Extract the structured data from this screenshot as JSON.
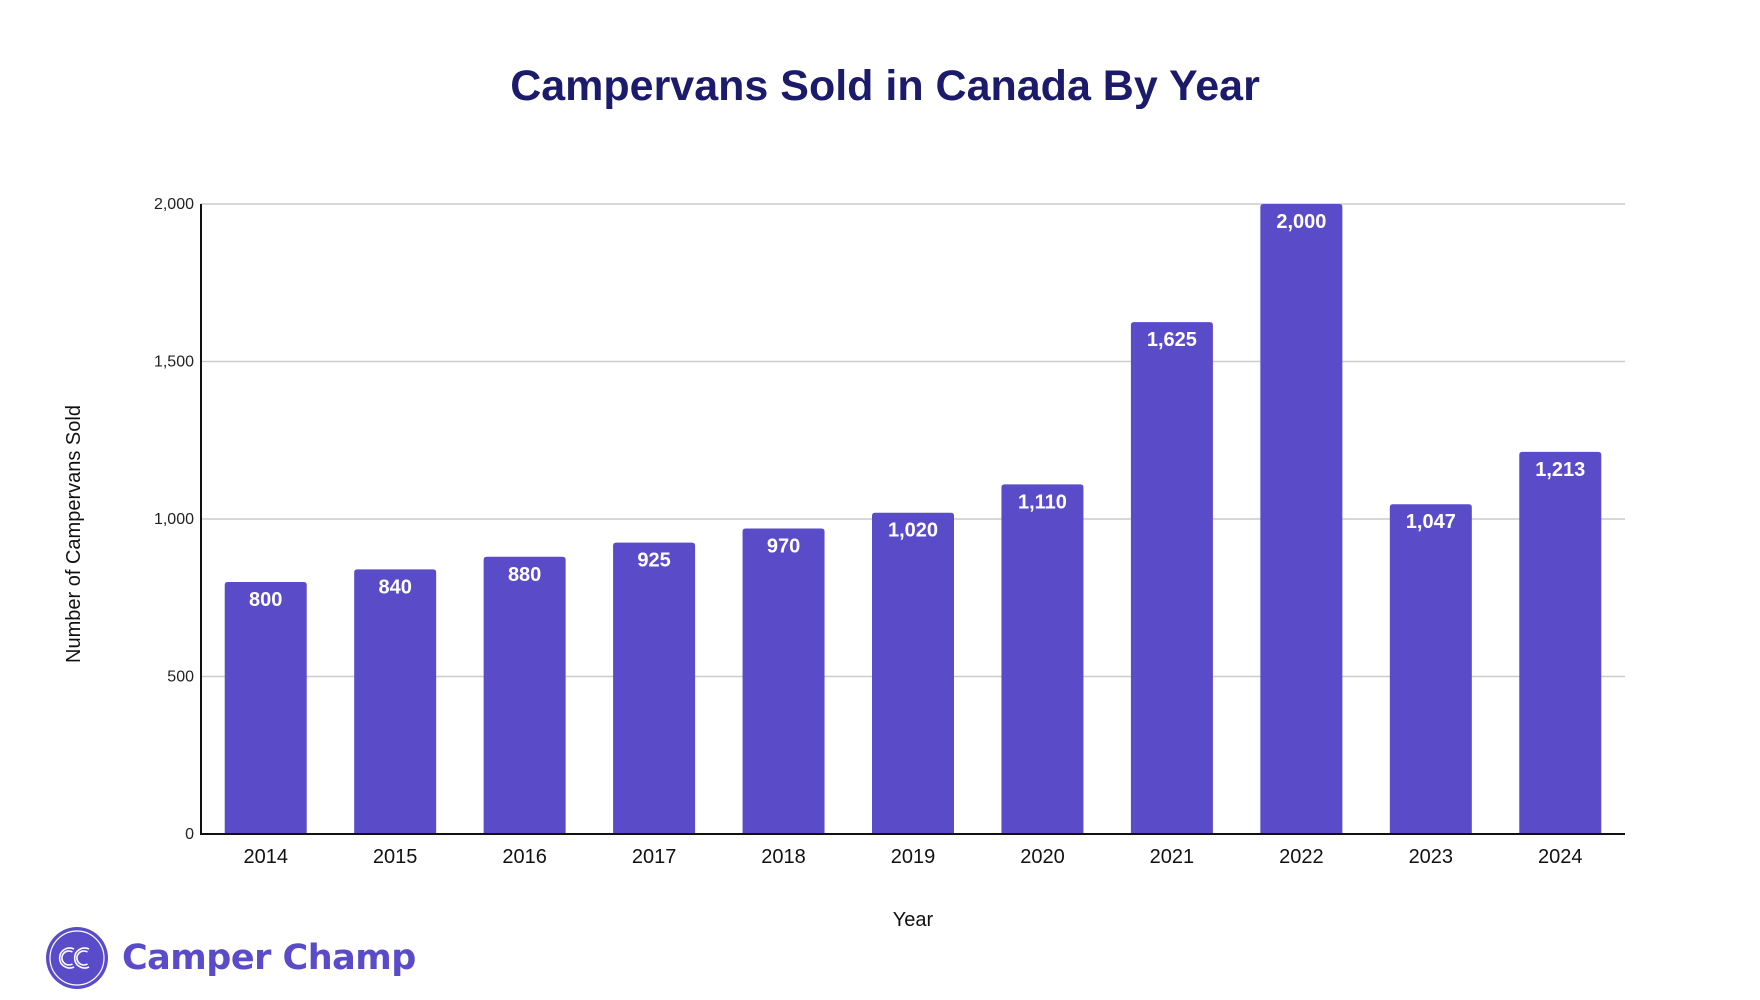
{
  "chart_data": {
    "type": "bar",
    "title": "Campervans Sold in Canada By Year",
    "xlabel": "Year",
    "ylabel": "Number of Campervans Sold",
    "categories": [
      "2014",
      "2015",
      "2016",
      "2017",
      "2018",
      "2019",
      "2020",
      "2021",
      "2022",
      "2023",
      "2024"
    ],
    "values": [
      800,
      840,
      880,
      925,
      970,
      1020,
      1110,
      1625,
      2000,
      1047,
      1213
    ],
    "data_labels": [
      "800",
      "840",
      "880",
      "925",
      "970",
      "1,020",
      "1,110",
      "1,625",
      "2,000",
      "1,047",
      "1,213"
    ],
    "ylim": [
      0,
      2000
    ],
    "yticks": [
      0,
      500,
      1000,
      1500,
      2000
    ],
    "ytick_labels": [
      "0",
      "500",
      "1,000",
      "1,500",
      "2,000"
    ],
    "grid": true,
    "legend": "none",
    "bar_color": "#5a4bc9",
    "gridline_color": "#cccccc"
  },
  "brand": {
    "name": "Camper Champ",
    "logo_initials": "CC",
    "color": "#5a4bc9"
  }
}
